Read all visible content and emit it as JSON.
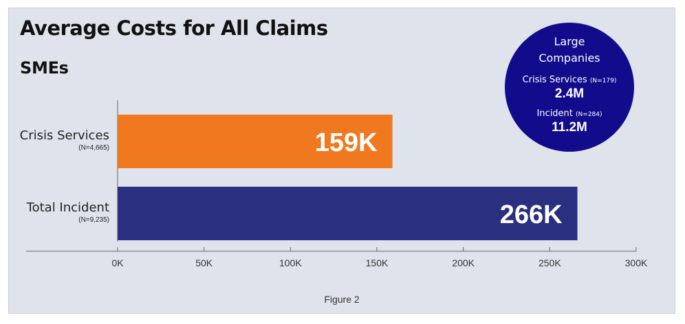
{
  "title": "Average Costs for All Claims",
  "subtitle": "SMEs",
  "caption": "Figure 2",
  "colors": {
    "background": "#dfe3ec",
    "crisis_bar": "#f07920",
    "incident_bar": "#2a2f80",
    "bubble": "#120c8c"
  },
  "large_companies": {
    "title_line1": "Large",
    "title_line2": "Companies",
    "rows": [
      {
        "label": "Crisis Services",
        "n": "(N=179)",
        "value": "2.4M"
      },
      {
        "label": "Incident",
        "n": "(N=284)",
        "value": "11.2M"
      }
    ]
  },
  "chart_data": {
    "type": "bar",
    "orientation": "horizontal",
    "title": "Average Costs for All Claims",
    "subtitle": "SMEs",
    "categories": [
      "Crisis Services",
      "Total Incident"
    ],
    "category_notes": [
      "(N=4,665)",
      "(N=9,235)"
    ],
    "values": [
      159000,
      266000
    ],
    "data_labels": [
      "159K",
      "266K"
    ],
    "bar_colors": [
      "#f07920",
      "#2a2f80"
    ],
    "xlim": [
      0,
      300000
    ],
    "xticks": [
      0,
      50000,
      100000,
      150000,
      200000,
      250000,
      300000
    ],
    "xtick_labels": [
      "0K",
      "50K",
      "100K",
      "150K",
      "200K",
      "250K",
      "300K"
    ],
    "grid": false
  }
}
